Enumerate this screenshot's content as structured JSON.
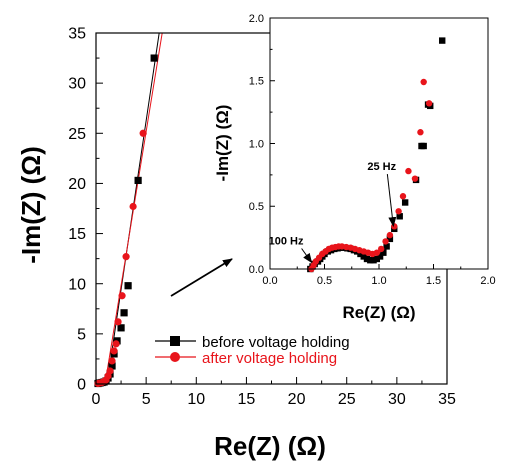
{
  "chart_data": [
    {
      "id": "main",
      "type": "scatter",
      "xlabel": "Re(Z) (Ω)",
      "ylabel": "-Im(Z) (Ω)",
      "xlim": [
        0,
        35
      ],
      "ylim": [
        0,
        35
      ],
      "xticks": [
        "0",
        "5",
        "10",
        "15",
        "20",
        "25",
        "30",
        "35"
      ],
      "yticks": [
        "0",
        "5",
        "10",
        "15",
        "20",
        "25",
        "30",
        "35"
      ],
      "legend_position": "bottom-center",
      "series": [
        {
          "name": "before voltage holding",
          "color": "#000000",
          "marker": "square",
          "points": [
            [
              0.2,
              0.05
            ],
            [
              0.4,
              0.1
            ],
            [
              0.6,
              0.15
            ],
            [
              0.8,
              0.2
            ],
            [
              1.0,
              0.3
            ],
            [
              1.2,
              0.6
            ],
            [
              1.4,
              1.0
            ],
            [
              1.6,
              1.8
            ],
            [
              1.8,
              3.0
            ],
            [
              2.1,
              4.3
            ],
            [
              2.5,
              5.6
            ],
            [
              2.8,
              7.1
            ],
            [
              3.2,
              9.8
            ],
            [
              4.2,
              20.3
            ],
            [
              5.8,
              32.5
            ]
          ],
          "fit_line": [
            [
              1.1,
              0
            ],
            [
              6.3,
              35
            ]
          ]
        },
        {
          "name": "after voltage holding",
          "color": "#e8141b",
          "marker": "circle",
          "points": [
            [
              0.2,
              0.05
            ],
            [
              0.4,
              0.1
            ],
            [
              0.6,
              0.15
            ],
            [
              0.8,
              0.25
            ],
            [
              1.0,
              0.4
            ],
            [
              1.2,
              0.8
            ],
            [
              1.4,
              1.3
            ],
            [
              1.6,
              2.3
            ],
            [
              1.8,
              3.3
            ],
            [
              2.0,
              4.0
            ],
            [
              2.2,
              6.2
            ],
            [
              2.6,
              8.8
            ],
            [
              3.0,
              12.7
            ],
            [
              3.7,
              17.7
            ],
            [
              4.7,
              25.0
            ]
          ],
          "fit_line": [
            [
              0.9,
              0
            ],
            [
              6.6,
              35
            ]
          ]
        }
      ]
    },
    {
      "id": "inset",
      "type": "scatter",
      "xlabel": "Re(Z) (Ω)",
      "ylabel": "-Im(Z) (Ω)",
      "xlim": [
        0,
        2.0
      ],
      "ylim": [
        0,
        2.0
      ],
      "xticks": [
        "0.0",
        "0.5",
        "1.0",
        "1.5",
        "2.0"
      ],
      "yticks": [
        "0.0",
        "0.5",
        "1.0",
        "1.5",
        "2.0"
      ],
      "annotations": [
        {
          "text": "100 Hz",
          "x": 0.4,
          "y": 0.02
        },
        {
          "text": "25 Hz",
          "x": 1.15,
          "y": 0.31
        }
      ],
      "series": [
        {
          "name": "before voltage holding",
          "color": "#000000",
          "marker": "square",
          "points": [
            [
              0.37,
              0.0
            ],
            [
              0.39,
              0.02
            ],
            [
              0.41,
              0.04
            ],
            [
              0.44,
              0.06
            ],
            [
              0.46,
              0.08
            ],
            [
              0.48,
              0.1
            ],
            [
              0.5,
              0.12
            ],
            [
              0.53,
              0.14
            ],
            [
              0.56,
              0.15
            ],
            [
              0.59,
              0.16
            ],
            [
              0.62,
              0.165
            ],
            [
              0.65,
              0.17
            ],
            [
              0.68,
              0.17
            ],
            [
              0.71,
              0.165
            ],
            [
              0.74,
              0.16
            ],
            [
              0.77,
              0.15
            ],
            [
              0.8,
              0.14
            ],
            [
              0.83,
              0.12
            ],
            [
              0.86,
              0.1
            ],
            [
              0.89,
              0.08
            ],
            [
              0.92,
              0.07
            ],
            [
              0.95,
              0.07
            ],
            [
              0.98,
              0.08
            ],
            [
              1.01,
              0.1
            ],
            [
              1.04,
              0.13
            ],
            [
              1.07,
              0.18
            ],
            [
              1.1,
              0.24
            ],
            [
              1.14,
              0.32
            ],
            [
              1.19,
              0.42
            ],
            [
              1.24,
              0.53
            ],
            [
              1.34,
              0.71
            ],
            [
              1.39,
              0.98
            ],
            [
              1.41,
              0.98
            ],
            [
              1.45,
              1.31
            ],
            [
              1.47,
              1.3
            ],
            [
              1.58,
              1.82
            ]
          ]
        },
        {
          "name": "after voltage holding",
          "color": "#e8141b",
          "marker": "circle",
          "points": [
            [
              0.38,
              0.0
            ],
            [
              0.4,
              0.03
            ],
            [
              0.42,
              0.06
            ],
            [
              0.45,
              0.09
            ],
            [
              0.48,
              0.12
            ],
            [
              0.51,
              0.14
            ],
            [
              0.54,
              0.16
            ],
            [
              0.57,
              0.17
            ],
            [
              0.6,
              0.175
            ],
            [
              0.63,
              0.18
            ],
            [
              0.66,
              0.18
            ],
            [
              0.7,
              0.175
            ],
            [
              0.74,
              0.17
            ],
            [
              0.78,
              0.16
            ],
            [
              0.82,
              0.15
            ],
            [
              0.86,
              0.14
            ],
            [
              0.9,
              0.13
            ],
            [
              0.94,
              0.12
            ],
            [
              0.98,
              0.13
            ],
            [
              1.02,
              0.16
            ],
            [
              1.06,
              0.22
            ],
            [
              1.1,
              0.27
            ],
            [
              1.14,
              0.34
            ],
            [
              1.18,
              0.46
            ],
            [
              1.22,
              0.58
            ],
            [
              1.27,
              0.78
            ],
            [
              1.33,
              0.72
            ],
            [
              1.38,
              1.09
            ],
            [
              1.41,
              1.49
            ],
            [
              1.46,
              1.32
            ]
          ]
        }
      ]
    }
  ]
}
